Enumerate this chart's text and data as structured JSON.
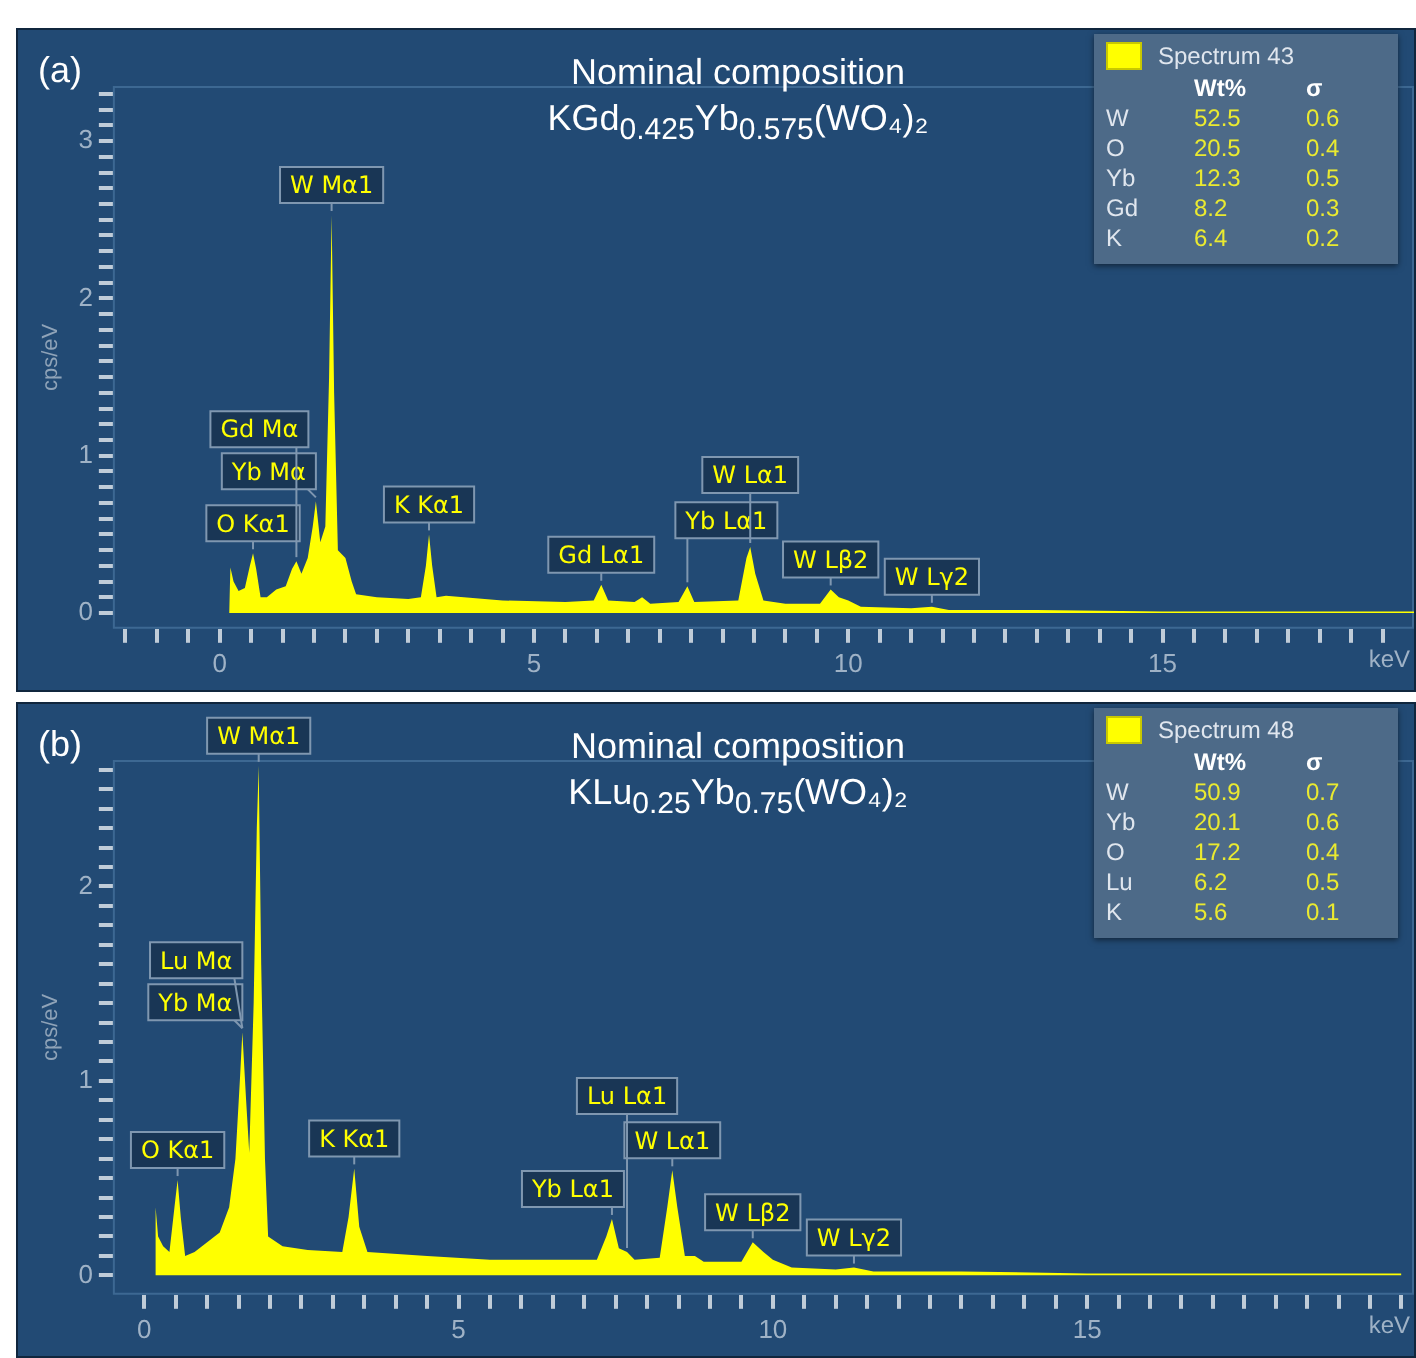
{
  "chart_data": [
    {
      "type": "area",
      "title": "Nominal composition",
      "subtitle": "KGd$_{0.425}$Yb$_{0.575}$(WO₄)₂",
      "xlabel": "keV",
      "ylabel": "cps/eV",
      "legend": "top right",
      "grid": false,
      "xlim": [
        -1.7,
        19.0
      ],
      "ylim": [
        -0.1,
        3.35
      ],
      "xticks": [
        {
          "value": -1.5,
          "label": null
        },
        {
          "value": -1,
          "label": null
        },
        {
          "value": -0.5,
          "label": null
        },
        0,
        {
          "value": 0.5,
          "label": null
        },
        {
          "value": 1,
          "label": null
        },
        {
          "value": 1.5,
          "label": null
        },
        {
          "value": 2,
          "label": null
        },
        {
          "value": 2.5,
          "label": null
        },
        {
          "value": 3,
          "label": null
        },
        {
          "value": 3.5,
          "label": null
        },
        {
          "value": 4,
          "label": null
        },
        {
          "value": 4.5,
          "label": null
        },
        5,
        {
          "value": 5.5,
          "label": null
        },
        {
          "value": 6,
          "label": null
        },
        {
          "value": 6.5,
          "label": null
        },
        {
          "value": 7,
          "label": null
        },
        {
          "value": 7.5,
          "label": null
        },
        {
          "value": 8,
          "label": null
        },
        {
          "value": 8.5,
          "label": null
        },
        {
          "value": 9,
          "label": null
        },
        {
          "value": 9.5,
          "label": null
        },
        10,
        {
          "value": 10.5,
          "label": null
        },
        {
          "value": 11,
          "label": null
        },
        {
          "value": 11.5,
          "label": null
        },
        {
          "value": 12,
          "label": null
        },
        {
          "value": 12.5,
          "label": null
        },
        {
          "value": 13,
          "label": null
        },
        {
          "value": 13.5,
          "label": null
        },
        {
          "value": 14,
          "label": null
        },
        {
          "value": 14.5,
          "label": null
        },
        15,
        {
          "value": 15.5,
          "label": null
        },
        {
          "value": 16,
          "label": null
        },
        {
          "value": 16.5,
          "label": null
        },
        {
          "value": 17,
          "label": null
        },
        {
          "value": 17.5,
          "label": null
        },
        {
          "value": 18,
          "label": null
        },
        {
          "value": 18.5,
          "label": null
        }
      ],
      "yticks": [
        0,
        {
          "value": 0.1,
          "label": null
        },
        {
          "value": 0.2,
          "label": null
        },
        {
          "value": 0.3,
          "label": null
        },
        {
          "value": 0.4,
          "label": null
        },
        {
          "value": 0.5,
          "label": null
        },
        {
          "value": 0.6,
          "label": null
        },
        {
          "value": 0.7,
          "label": null
        },
        {
          "value": 0.8,
          "label": null
        },
        {
          "value": 0.9,
          "label": null
        },
        1,
        {
          "value": 1.1,
          "label": null
        },
        {
          "value": 1.2,
          "label": null
        },
        {
          "value": 1.3,
          "label": null
        },
        {
          "value": 1.4,
          "label": null
        },
        {
          "value": 1.5,
          "label": null
        },
        {
          "value": 1.6,
          "label": null
        },
        {
          "value": 1.7,
          "label": null
        },
        {
          "value": 1.8,
          "label": null
        },
        {
          "value": 1.9,
          "label": null
        },
        2,
        {
          "value": 2.1,
          "label": null
        },
        {
          "value": 2.2,
          "label": null
        },
        {
          "value": 2.3,
          "label": null
        },
        {
          "value": 2.4,
          "label": null
        },
        {
          "value": 2.5,
          "label": null
        },
        {
          "value": 2.6,
          "label": null
        },
        {
          "value": 2.7,
          "label": null
        },
        {
          "value": 2.8,
          "label": null
        },
        {
          "value": 2.9,
          "label": null
        },
        3,
        {
          "value": 3.1,
          "label": null
        },
        {
          "value": 3.2,
          "label": null
        },
        {
          "value": 3.3,
          "label": null
        }
      ],
      "series": [
        {
          "name": "Spectrum 43",
          "color": "#ffff00",
          "x": [
            0.15,
            0.17,
            0.22,
            0.3,
            0.4,
            0.48,
            0.53,
            0.58,
            0.65,
            0.75,
            0.9,
            1.05,
            1.15,
            1.22,
            1.3,
            1.4,
            1.48,
            1.53,
            1.6,
            1.68,
            1.74,
            1.78,
            1.82,
            1.88,
            2.0,
            2.1,
            2.17,
            2.5,
            3.0,
            3.2,
            3.28,
            3.33,
            3.38,
            3.45,
            3.6,
            4.5,
            5.5,
            5.95,
            6.07,
            6.18,
            6.6,
            6.72,
            6.85,
            7.3,
            7.44,
            7.55,
            8.25,
            8.38,
            8.44,
            8.52,
            8.65,
            9.0,
            9.55,
            9.72,
            9.85,
            10.0,
            10.2,
            11.0,
            11.33,
            11.6,
            13,
            15,
            17,
            19
          ],
          "values": [
            0,
            0.29,
            0.2,
            0.14,
            0.16,
            0.3,
            0.38,
            0.28,
            0.1,
            0.1,
            0.15,
            0.17,
            0.28,
            0.33,
            0.25,
            0.35,
            0.55,
            0.71,
            0.45,
            0.55,
            1.5,
            2.53,
            1.4,
            0.4,
            0.35,
            0.2,
            0.12,
            0.1,
            0.09,
            0.1,
            0.3,
            0.5,
            0.3,
            0.1,
            0.11,
            0.08,
            0.07,
            0.08,
            0.18,
            0.08,
            0.07,
            0.1,
            0.06,
            0.07,
            0.17,
            0.07,
            0.08,
            0.35,
            0.42,
            0.25,
            0.08,
            0.06,
            0.06,
            0.15,
            0.1,
            0.08,
            0.04,
            0.03,
            0.04,
            0.02,
            0.02,
            0.01,
            0.01,
            0.01
          ]
        }
      ],
      "annotations": [
        "(a)",
        "Wt%",
        "σ",
        "W",
        "52.5",
        "0.6",
        "O",
        "20.5",
        "0.4",
        "Yb",
        "12.3",
        "0.5",
        "Gd",
        "8.2",
        "0.3",
        "K",
        "6.4",
        "0.2",
        {
          "text": "W Mα1",
          "x": 1.78,
          "y": 2.53
        },
        {
          "text": "Yb Mα",
          "x": 1.53,
          "y": 0.71
        },
        {
          "text": "O Kα1",
          "x": 0.53,
          "y": 0.38
        },
        {
          "text": "Gd Mα",
          "x": 1.22,
          "y": 0.33
        },
        {
          "text": "K Kα1",
          "x": 3.33,
          "y": 0.5
        },
        {
          "text": "Gd Lα1",
          "x": 6.07,
          "y": 0.18
        },
        {
          "text": "Yb Lα1",
          "x": 7.44,
          "y": 0.17
        },
        {
          "text": "W Lα1",
          "x": 8.44,
          "y": 0.42
        },
        {
          "text": "W Lβ2",
          "x": 9.72,
          "y": 0.15
        },
        {
          "text": "W Lγ2",
          "x": 11.33,
          "y": 0.04
        }
      ]
    },
    {
      "type": "area",
      "title": "Nominal composition",
      "subtitle": "KLu$_{0.25}$Yb$_{0.75}$(WO₄)₂",
      "xlabel": "keV",
      "ylabel": "cps/eV",
      "legend": "top right",
      "grid": false,
      "xlim": [
        -0.5,
        20.2
      ],
      "ylim": [
        -0.1,
        2.65
      ],
      "xticks": [
        0,
        {
          "value": 0.5,
          "label": null
        },
        {
          "value": 1,
          "label": null
        },
        {
          "value": 1.5,
          "label": null
        },
        {
          "value": 2,
          "label": null
        },
        {
          "value": 2.5,
          "label": null
        },
        {
          "value": 3,
          "label": null
        },
        {
          "value": 3.5,
          "label": null
        },
        {
          "value": 4,
          "label": null
        },
        {
          "value": 4.5,
          "label": null
        },
        5,
        {
          "value": 5.5,
          "label": null
        },
        {
          "value": 6,
          "label": null
        },
        {
          "value": 6.5,
          "label": null
        },
        {
          "value": 7,
          "label": null
        },
        {
          "value": 7.5,
          "label": null
        },
        {
          "value": 8,
          "label": null
        },
        {
          "value": 8.5,
          "label": null
        },
        {
          "value": 9,
          "label": null
        },
        {
          "value": 9.5,
          "label": null
        },
        10,
        {
          "value": 10.5,
          "label": null
        },
        {
          "value": 11,
          "label": null
        },
        {
          "value": 11.5,
          "label": null
        },
        {
          "value": 12,
          "label": null
        },
        {
          "value": 12.5,
          "label": null
        },
        {
          "value": 13,
          "label": null
        },
        {
          "value": 13.5,
          "label": null
        },
        {
          "value": 14,
          "label": null
        },
        {
          "value": 14.5,
          "label": null
        },
        15,
        {
          "value": 15.5,
          "label": null
        },
        {
          "value": 16,
          "label": null
        },
        {
          "value": 16.5,
          "label": null
        },
        {
          "value": 17,
          "label": null
        },
        {
          "value": 17.5,
          "label": null
        },
        {
          "value": 18,
          "label": null
        },
        {
          "value": 18.5,
          "label": null
        },
        {
          "value": 19,
          "label": null
        },
        {
          "value": 19.5,
          "label": null
        },
        {
          "value": 20,
          "label": null
        }
      ],
      "yticks": [
        0,
        {
          "value": 0.1,
          "label": null
        },
        {
          "value": 0.2,
          "label": null
        },
        {
          "value": 0.3,
          "label": null
        },
        {
          "value": 0.4,
          "label": null
        },
        {
          "value": 0.5,
          "label": null
        },
        {
          "value": 0.6,
          "label": null
        },
        {
          "value": 0.7,
          "label": null
        },
        {
          "value": 0.8,
          "label": null
        },
        {
          "value": 0.9,
          "label": null
        },
        1,
        {
          "value": 1.1,
          "label": null
        },
        {
          "value": 1.2,
          "label": null
        },
        {
          "value": 1.3,
          "label": null
        },
        {
          "value": 1.4,
          "label": null
        },
        {
          "value": 1.5,
          "label": null
        },
        {
          "value": 1.6,
          "label": null
        },
        {
          "value": 1.7,
          "label": null
        },
        {
          "value": 1.8,
          "label": null
        },
        {
          "value": 1.9,
          "label": null
        },
        2,
        {
          "value": 2.1,
          "label": null
        },
        {
          "value": 2.2,
          "label": null
        },
        {
          "value": 2.3,
          "label": null
        },
        {
          "value": 2.4,
          "label": null
        },
        {
          "value": 2.5,
          "label": null
        },
        {
          "value": 2.6,
          "label": null
        }
      ],
      "series": [
        {
          "name": "Spectrum 48",
          "color": "#ffff00",
          "x": [
            0.16,
            0.18,
            0.22,
            0.3,
            0.4,
            0.48,
            0.53,
            0.58,
            0.65,
            0.8,
            1.0,
            1.2,
            1.35,
            1.45,
            1.52,
            1.56,
            1.62,
            1.67,
            1.74,
            1.79,
            1.82,
            1.86,
            1.92,
            1.97,
            2.2,
            2.6,
            3.15,
            3.25,
            3.34,
            3.42,
            3.55,
            4.5,
            5.5,
            6.5,
            7.2,
            7.35,
            7.44,
            7.55,
            7.68,
            7.8,
            8.2,
            8.32,
            8.4,
            8.48,
            8.6,
            8.76,
            8.9,
            9.5,
            9.68,
            9.85,
            10.0,
            10.3,
            11.0,
            11.29,
            11.6,
            13,
            15,
            17,
            20
          ],
          "values": [
            0,
            0.35,
            0.2,
            0.15,
            0.12,
            0.35,
            0.49,
            0.3,
            0.1,
            0.12,
            0.17,
            0.22,
            0.35,
            0.6,
            1.0,
            1.25,
            0.9,
            0.63,
            1.4,
            2.3,
            2.62,
            1.6,
            0.6,
            0.2,
            0.15,
            0.13,
            0.12,
            0.3,
            0.55,
            0.25,
            0.12,
            0.1,
            0.08,
            0.08,
            0.08,
            0.2,
            0.29,
            0.14,
            0.12,
            0.08,
            0.09,
            0.35,
            0.54,
            0.35,
            0.1,
            0.1,
            0.07,
            0.07,
            0.17,
            0.12,
            0.08,
            0.04,
            0.03,
            0.04,
            0.02,
            0.02,
            0.01,
            0.01,
            0.01
          ]
        }
      ],
      "annotations": [
        "(b)",
        "Wt%",
        "σ",
        "W",
        "50.9",
        "0.7",
        "Yb",
        "20.1",
        "0.6",
        "O",
        "17.2",
        "0.4",
        "Lu",
        "6.2",
        "0.5",
        "K",
        "5.6",
        "0.1",
        {
          "text": "W Mα1",
          "x": 1.82,
          "y": 2.62
        },
        {
          "text": "Yb Mα",
          "x": 1.56,
          "y": 1.25
        },
        {
          "text": "Lu Mα",
          "x": 1.56,
          "y": 1.25
        },
        {
          "text": "O Kα1",
          "x": 0.53,
          "y": 0.49
        },
        {
          "text": "K Kα1",
          "x": 3.34,
          "y": 0.55
        },
        {
          "text": "W Lα1",
          "x": 8.4,
          "y": 0.54
        },
        {
          "text": "Yb Lα1",
          "x": 7.44,
          "y": 0.29
        },
        {
          "text": "Lu Lα1",
          "x": 7.68,
          "y": 0.12
        },
        {
          "text": "W Lβ2",
          "x": 9.68,
          "y": 0.17
        },
        {
          "text": "W Lγ2",
          "x": 11.29,
          "y": 0.04
        }
      ]
    }
  ]
}
